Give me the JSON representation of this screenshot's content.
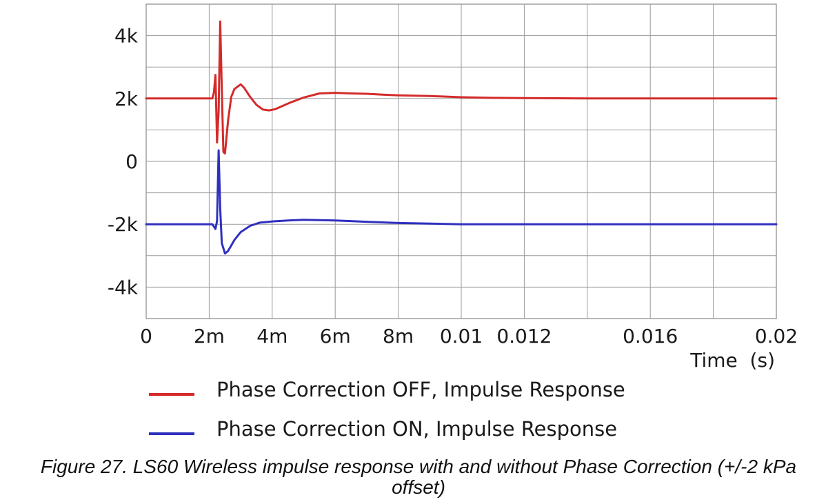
{
  "chart_data": {
    "type": "line",
    "title": "",
    "xlabel": "Time  (s)",
    "ylabel": "",
    "xlim": [
      0,
      0.02
    ],
    "ylim": [
      -5000,
      5000
    ],
    "grid": true,
    "x_ticks": [
      {
        "value": 0,
        "label": "0"
      },
      {
        "value": 0.002,
        "label": "2m"
      },
      {
        "value": 0.004,
        "label": "4m"
      },
      {
        "value": 0.006,
        "label": "6m"
      },
      {
        "value": 0.008,
        "label": "8m"
      },
      {
        "value": 0.01,
        "label": "0.01"
      },
      {
        "value": 0.012,
        "label": "0.012"
      },
      {
        "value": 0.016,
        "label": "0.016"
      },
      {
        "value": 0.02,
        "label": "0.02"
      }
    ],
    "y_ticks": [
      {
        "value": 4000,
        "label": "4k"
      },
      {
        "value": 2000,
        "label": "2k"
      },
      {
        "value": 0,
        "label": "0"
      },
      {
        "value": -2000,
        "label": "-2k"
      },
      {
        "value": -4000,
        "label": "-4k"
      }
    ],
    "series": [
      {
        "name": "Phase Correction OFF, Impulse Response",
        "color": "#d42a2a",
        "x": [
          0,
          0.0021,
          0.00215,
          0.0022,
          0.00225,
          0.0023,
          0.00235,
          0.0024,
          0.00245,
          0.0025,
          0.0026,
          0.0027,
          0.0028,
          0.003,
          0.0031,
          0.0033,
          0.0035,
          0.0037,
          0.0039,
          0.0041,
          0.0043,
          0.0046,
          0.005,
          0.0055,
          0.006,
          0.0065,
          0.007,
          0.0075,
          0.008,
          0.009,
          0.01,
          0.011,
          0.012,
          0.014,
          0.016,
          0.018,
          0.02
        ],
        "values": [
          2000,
          2000,
          2200,
          2750,
          600,
          1600,
          4450,
          2300,
          300,
          250,
          1300,
          2050,
          2300,
          2450,
          2350,
          2050,
          1800,
          1650,
          1620,
          1660,
          1750,
          1880,
          2030,
          2160,
          2180,
          2160,
          2150,
          2120,
          2100,
          2080,
          2040,
          2020,
          2010,
          2000,
          2000,
          2000,
          2000
        ]
      },
      {
        "name": "Phase Correction ON, Impulse Response",
        "color": "#2f2fbf",
        "x": [
          0,
          0.0019,
          0.0021,
          0.0022,
          0.00225,
          0.0023,
          0.00235,
          0.0024,
          0.0025,
          0.0026,
          0.0028,
          0.003,
          0.0033,
          0.0036,
          0.004,
          0.0045,
          0.005,
          0.006,
          0.007,
          0.008,
          0.009,
          0.01,
          0.012,
          0.014,
          0.016,
          0.018,
          0.02
        ],
        "values": [
          -2000,
          -2000,
          -2000,
          -2150,
          -1900,
          350,
          -1500,
          -2600,
          -2930,
          -2850,
          -2500,
          -2250,
          -2050,
          -1950,
          -1910,
          -1880,
          -1860,
          -1880,
          -1920,
          -1960,
          -1980,
          -2000,
          -2000,
          -2000,
          -2000,
          -2000,
          -2000
        ]
      }
    ]
  },
  "caption": "Figure 27. LS60 Wireless impulse response with and without Phase Correction (+/-2 kPa offset)"
}
